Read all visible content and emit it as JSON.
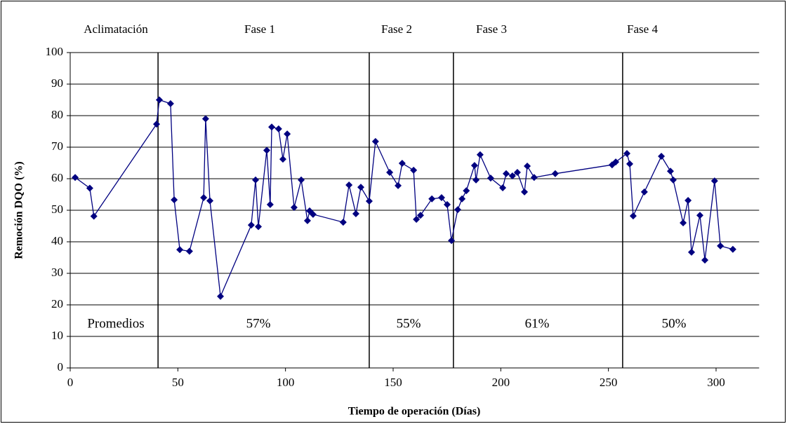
{
  "chart_data": {
    "type": "line",
    "xlabel": "Tiempo de operación (Días)",
    "ylabel": "Remoción DQO (%)",
    "xlim": [
      0,
      320
    ],
    "ylim": [
      0,
      100
    ],
    "xticks": [
      0,
      50,
      100,
      150,
      200,
      250,
      300
    ],
    "yticks": [
      0,
      10,
      20,
      30,
      40,
      50,
      60,
      70,
      80,
      90,
      100
    ],
    "grid": true,
    "phase_labels": [
      "Aclimatación",
      "Fase 1",
      "Fase 2",
      "Fase 3",
      "Fase 4"
    ],
    "phase_boundaries": [
      40.8,
      138.9,
      178,
      256.6
    ],
    "averages": [
      "Promedios",
      "57%",
      "55%",
      "61%",
      "50%"
    ],
    "series": [
      {
        "color": "#000080",
        "x": [
          2.3,
          9.1,
          11,
          40.1,
          41.4,
          46.6,
          48.3,
          50.9,
          55.4,
          62,
          62.9,
          64.9,
          69.8,
          84.1,
          86.1,
          87.4,
          91.3,
          92.9,
          93.6,
          96.8,
          98.8,
          100.8,
          104,
          107.3,
          110.2,
          111.2,
          112.8,
          126.8,
          129.5,
          132.7,
          135,
          138.9,
          141.8,
          148.4,
          152.3,
          154.2,
          159.5,
          160.8,
          162.7,
          168,
          172.5,
          175.1,
          177.1,
          180,
          182,
          184,
          187.8,
          188.5,
          190.4,
          195.3,
          200.9,
          202.5,
          205.4,
          207.7,
          211,
          212.3,
          215.5,
          225.3,
          251.7,
          253.4,
          258.6,
          259.9,
          261.5,
          266.7,
          274.6,
          278.8,
          280.1,
          284.7,
          287,
          288.6,
          292.5,
          294.8,
          299.3,
          302,
          307.8
        ],
        "values": [
          60.4,
          57,
          48.1,
          77.3,
          85,
          83.8,
          53.3,
          37.5,
          37,
          54,
          79,
          53,
          22.7,
          45.3,
          59.6,
          44.8,
          69,
          51.8,
          76.4,
          75.8,
          66.2,
          74.2,
          50.9,
          59.6,
          46.7,
          49.8,
          48.7,
          46.2,
          58,
          48.9,
          57.3,
          52.9,
          71.8,
          62,
          57.8,
          64.9,
          62.7,
          47.1,
          48.4,
          53.6,
          54,
          51.8,
          40.4,
          50.2,
          53.6,
          56.2,
          64.2,
          59.6,
          67.6,
          60.2,
          57.1,
          61.6,
          60.9,
          62,
          55.8,
          64,
          60.4,
          61.6,
          64.4,
          65.3,
          68,
          64.7,
          48.2,
          55.8,
          67.1,
          62.4,
          59.6,
          46,
          53.1,
          36.7,
          48.4,
          34.2,
          59.3,
          38.7,
          37.6
        ]
      }
    ]
  }
}
